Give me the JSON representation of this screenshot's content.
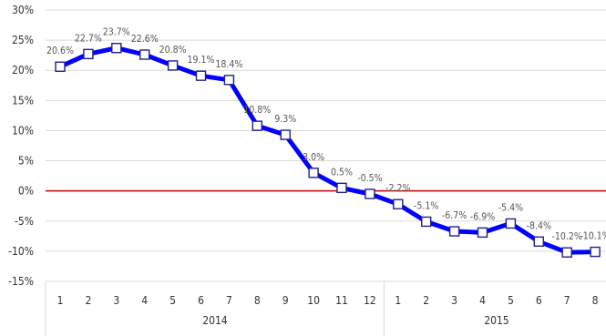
{
  "chart_data": {
    "type": "line",
    "title": "",
    "xlabel": "",
    "ylabel": "",
    "ylim": [
      -15,
      30
    ],
    "ytick_step": 5,
    "y_tick_labels": [
      "-15%",
      "-10%",
      "-5%",
      "0%",
      "5%",
      "10%",
      "15%",
      "20%",
      "25%",
      "30%"
    ],
    "grid": "horizontal",
    "groups": [
      {
        "label": "2014",
        "categories": [
          "1",
          "2",
          "3",
          "4",
          "5",
          "6",
          "7",
          "8",
          "9",
          "10",
          "11",
          "12"
        ]
      },
      {
        "label": "2015",
        "categories": [
          "1",
          "2",
          "3",
          "4",
          "5",
          "6",
          "7",
          "8"
        ]
      }
    ],
    "series": [
      {
        "values": [
          20.6,
          22.7,
          23.7,
          22.6,
          20.8,
          19.1,
          18.4,
          10.8,
          9.3,
          3.0,
          0.5,
          -0.5,
          -2.2,
          -5.1,
          -6.7,
          -6.9,
          -5.4,
          -8.4,
          -10.2,
          -10.1
        ],
        "labels": [
          "20.6%",
          "22.7%",
          "23.7%",
          "22.6%",
          "20.8%",
          "19.1%",
          "18.4%",
          "10.8%",
          "9.3%",
          "3.0%",
          "0.5%",
          "-0.5%",
          "-2.2%",
          "-5.1%",
          "-6.7%",
          "-6.9%",
          "-5.4%",
          "-8.4%",
          "-10.2%",
          "-10.1%"
        ],
        "color": "#0000ff"
      }
    ],
    "zero_line_color": "#c00000",
    "grid_color": "#d9d9d9",
    "marker": "square-hollow"
  }
}
